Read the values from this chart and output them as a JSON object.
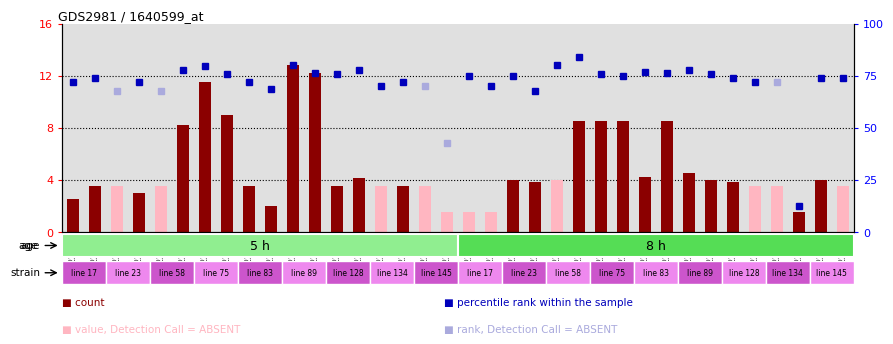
{
  "title": "GDS2981 / 1640599_at",
  "samples": [
    "GSM225283",
    "GSM225286",
    "GSM225288",
    "GSM225289",
    "GSM225291",
    "GSM225293",
    "GSM225296",
    "GSM225298",
    "GSM225299",
    "GSM225302",
    "GSM225304",
    "GSM225306",
    "GSM225307",
    "GSM225309",
    "GSM225317",
    "GSM225318",
    "GSM225319",
    "GSM225320",
    "GSM225322",
    "GSM225323",
    "GSM225324",
    "GSM225325",
    "GSM225326",
    "GSM225327",
    "GSM225328",
    "GSM225329",
    "GSM225330",
    "GSM225331",
    "GSM225332",
    "GSM225333",
    "GSM225334",
    "GSM225335",
    "GSM225336",
    "GSM225337",
    "GSM225338",
    "GSM225339"
  ],
  "count_values": [
    2.5,
    3.5,
    3.5,
    3.0,
    3.5,
    8.2,
    11.5,
    9.0,
    3.5,
    2.0,
    12.8,
    12.2,
    3.5,
    4.1,
    3.5,
    3.5,
    3.5,
    1.5,
    1.5,
    1.5,
    4.0,
    3.8,
    4.0,
    8.5,
    8.5,
    8.5,
    4.2,
    8.5,
    4.5,
    4.0,
    3.8,
    3.5,
    3.5,
    1.5,
    4.0,
    3.5
  ],
  "count_absent": [
    false,
    false,
    true,
    false,
    true,
    false,
    false,
    false,
    false,
    false,
    false,
    false,
    false,
    false,
    true,
    false,
    true,
    true,
    true,
    true,
    false,
    false,
    true,
    false,
    false,
    false,
    false,
    false,
    false,
    false,
    false,
    true,
    true,
    false,
    false,
    true
  ],
  "rank_values": [
    11.5,
    11.8,
    10.8,
    11.5,
    10.8,
    12.4,
    12.7,
    12.1,
    11.5,
    11.0,
    12.8,
    12.2,
    12.1,
    12.4,
    11.2,
    11.5,
    11.2,
    6.8,
    12.0,
    11.2,
    12.0,
    10.8,
    12.8,
    13.4,
    12.1,
    12.0,
    12.3,
    12.2,
    12.4,
    12.1,
    11.8,
    11.5,
    11.5,
    2.0,
    11.8,
    11.8
  ],
  "rank_absent": [
    false,
    false,
    true,
    false,
    true,
    false,
    false,
    false,
    false,
    false,
    false,
    false,
    false,
    false,
    false,
    false,
    true,
    true,
    false,
    false,
    false,
    false,
    false,
    false,
    false,
    false,
    false,
    false,
    false,
    false,
    false,
    false,
    true,
    false,
    false,
    false
  ],
  "age_groups": [
    {
      "label": "5 h",
      "start": 0,
      "end": 17,
      "color": "#90EE90"
    },
    {
      "label": "8 h",
      "start": 18,
      "end": 35,
      "color": "#55DD55"
    }
  ],
  "strain_segments": [
    {
      "label": "line 17",
      "start": 0,
      "end": 1,
      "color": "#CC55CC"
    },
    {
      "label": "line 23",
      "start": 2,
      "end": 3,
      "color": "#EE88EE"
    },
    {
      "label": "line 58",
      "start": 4,
      "end": 5,
      "color": "#CC55CC"
    },
    {
      "label": "line 75",
      "start": 6,
      "end": 7,
      "color": "#EE88EE"
    },
    {
      "label": "line 83",
      "start": 8,
      "end": 9,
      "color": "#CC55CC"
    },
    {
      "label": "line 89",
      "start": 10,
      "end": 11,
      "color": "#EE88EE"
    },
    {
      "label": "line 128",
      "start": 12,
      "end": 13,
      "color": "#CC55CC"
    },
    {
      "label": "line 134",
      "start": 14,
      "end": 15,
      "color": "#EE88EE"
    },
    {
      "label": "line 145",
      "start": 16,
      "end": 17,
      "color": "#CC55CC"
    },
    {
      "label": "line 17",
      "start": 18,
      "end": 19,
      "color": "#EE88EE"
    },
    {
      "label": "line 23",
      "start": 20,
      "end": 21,
      "color": "#CC55CC"
    },
    {
      "label": "line 58",
      "start": 22,
      "end": 23,
      "color": "#EE88EE"
    },
    {
      "label": "line 75",
      "start": 24,
      "end": 25,
      "color": "#CC55CC"
    },
    {
      "label": "line 83",
      "start": 26,
      "end": 27,
      "color": "#EE88EE"
    },
    {
      "label": "line 89",
      "start": 28,
      "end": 29,
      "color": "#CC55CC"
    },
    {
      "label": "line 128",
      "start": 30,
      "end": 31,
      "color": "#EE88EE"
    },
    {
      "label": "line 134",
      "start": 32,
      "end": 33,
      "color": "#CC55CC"
    },
    {
      "label": "line 145",
      "start": 34,
      "end": 35,
      "color": "#EE88EE"
    }
  ],
  "ylim_left": [
    0,
    16
  ],
  "ylim_right": [
    0,
    100
  ],
  "yticks_left": [
    0,
    4,
    8,
    12,
    16
  ],
  "yticks_right": [
    0,
    25,
    50,
    75,
    100
  ],
  "bar_color_present": "#8B0000",
  "bar_color_absent": "#FFB6C1",
  "dot_color_present": "#0000BB",
  "dot_color_absent": "#AAAADD",
  "bg_color": "#E0E0E0",
  "legend_items": [
    {
      "color": "#8B0000",
      "label": "count"
    },
    {
      "color": "#0000BB",
      "label": "percentile rank within the sample"
    },
    {
      "color": "#FFB6C1",
      "label": "value, Detection Call = ABSENT"
    },
    {
      "color": "#AAAADD",
      "label": "rank, Detection Call = ABSENT"
    }
  ]
}
